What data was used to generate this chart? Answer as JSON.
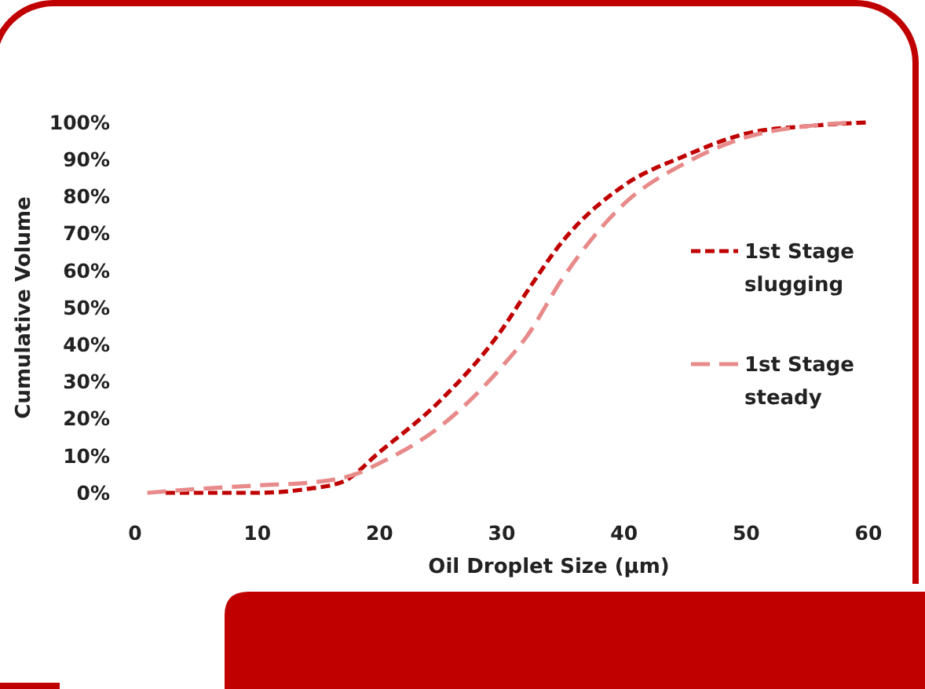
{
  "chart_data": {
    "type": "line",
    "xlabel": "Oil Droplet Size (µm)",
    "ylabel": "Cumulative Volume",
    "xlim": [
      0,
      60
    ],
    "xticks": [
      0,
      10,
      20,
      30,
      40,
      50,
      60
    ],
    "ylim": [
      0,
      100
    ],
    "yticks": [
      {
        "value": 0,
        "label": "0%"
      },
      {
        "value": 10,
        "label": "10%"
      },
      {
        "value": 20,
        "label": "20%"
      },
      {
        "value": 30,
        "label": "30%"
      },
      {
        "value": 40,
        "label": "40%"
      },
      {
        "value": 50,
        "label": "50%"
      },
      {
        "value": 60,
        "label": "60%"
      },
      {
        "value": 70,
        "label": "70%"
      },
      {
        "value": 80,
        "label": "80%"
      },
      {
        "value": 90,
        "label": "90%"
      },
      {
        "value": 100,
        "label": "100%"
      }
    ],
    "grid": false,
    "legend": "right",
    "line_style": "dashed",
    "marker": "none",
    "series": [
      {
        "name": "1st Stage slugging",
        "color": "#c00000",
        "x": [
          2.5,
          10,
          14,
          17,
          20,
          25,
          30,
          32,
          35,
          40,
          45,
          50,
          55,
          60
        ],
        "values": [
          0,
          0,
          1,
          3,
          11,
          25,
          44,
          54,
          68,
          83,
          91,
          97,
          99,
          100
        ]
      },
      {
        "name": "1st Stage steady",
        "color": "#e88a8a",
        "x": [
          1,
          5,
          10,
          15,
          18,
          20,
          25,
          30,
          32,
          35,
          40,
          45,
          50,
          55,
          59
        ],
        "values": [
          0,
          1,
          2,
          3,
          5,
          8,
          18,
          34,
          42,
          58,
          78,
          89,
          96,
          99,
          100
        ]
      }
    ]
  }
}
